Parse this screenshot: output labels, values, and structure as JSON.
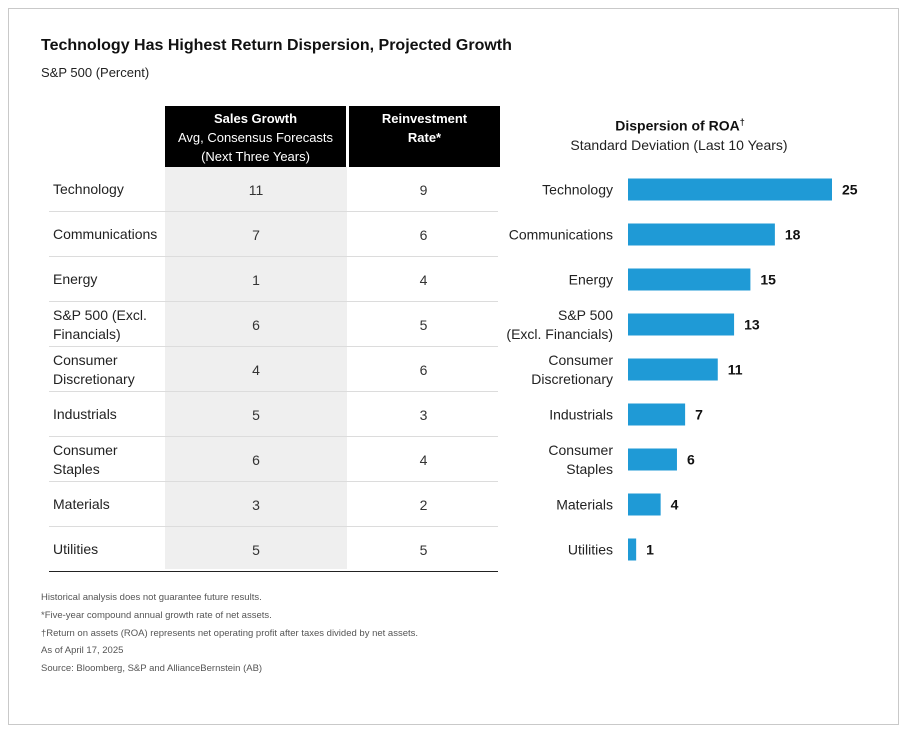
{
  "title": "Technology Has Highest Return Dispersion, Projected Growth",
  "subtitle": "S&P 500 (Percent)",
  "table": {
    "col1_header_bold": "Sales Growth",
    "col1_header_line2": "Avg, Consensus Forecasts",
    "col1_header_line3": "(Next Three Years)",
    "col2_header_line1": "Reinvestment",
    "col2_header_line2": "Rate*",
    "rows": [
      {
        "label": "Technology",
        "sales_growth": "11",
        "reinvestment": "9"
      },
      {
        "label": "Communications",
        "sales_growth": "7",
        "reinvestment": "6"
      },
      {
        "label": "Energy",
        "sales_growth": "1",
        "reinvestment": "4"
      },
      {
        "label": "S&P 500 (Excl. Financials)",
        "sales_growth": "6",
        "reinvestment": "5"
      },
      {
        "label": "Consumer Discretionary",
        "sales_growth": "4",
        "reinvestment": "6"
      },
      {
        "label": "Industrials",
        "sales_growth": "5",
        "reinvestment": "3"
      },
      {
        "label": "Consumer Staples",
        "sales_growth": "6",
        "reinvestment": "4"
      },
      {
        "label": "Materials",
        "sales_growth": "3",
        "reinvestment": "2"
      },
      {
        "label": "Utilities",
        "sales_growth": "5",
        "reinvestment": "5"
      }
    ]
  },
  "chart_data": {
    "type": "bar",
    "orientation": "horizontal",
    "title": "Dispersion of ROA",
    "title_mark": "†",
    "subtitle": "Standard Deviation (Last 10 Years)",
    "categories": [
      "Technology",
      "Communications",
      "Energy",
      "S&P 500 (Excl. Financials)",
      "Consumer Discretionary",
      "Industrials",
      "Consumer Staples",
      "Materials",
      "Utilities"
    ],
    "category_lines": [
      [
        "Technology"
      ],
      [
        "Communications"
      ],
      [
        "Energy"
      ],
      [
        "S&P 500",
        "(Excl. Financials)"
      ],
      [
        "Consumer",
        "Discretionary"
      ],
      [
        "Industrials"
      ],
      [
        "Consumer",
        "Staples"
      ],
      [
        "Materials"
      ],
      [
        "Utilities"
      ]
    ],
    "values": [
      25,
      18,
      15,
      13,
      11,
      7,
      6,
      4,
      1
    ],
    "xlim": [
      0,
      25
    ],
    "bar_color": "#1f9ad6",
    "data_labels": true,
    "grid": false
  },
  "notes": [
    "Historical analysis does not guarantee future results.",
    "*Five-year compound annual growth rate of net assets.",
    "†Return on assets (ROA) represents net operating profit after taxes divided by net assets.",
    "As of April 17, 2025",
    "Source: Bloomberg, S&P and AllianceBernstein (AB)"
  ]
}
